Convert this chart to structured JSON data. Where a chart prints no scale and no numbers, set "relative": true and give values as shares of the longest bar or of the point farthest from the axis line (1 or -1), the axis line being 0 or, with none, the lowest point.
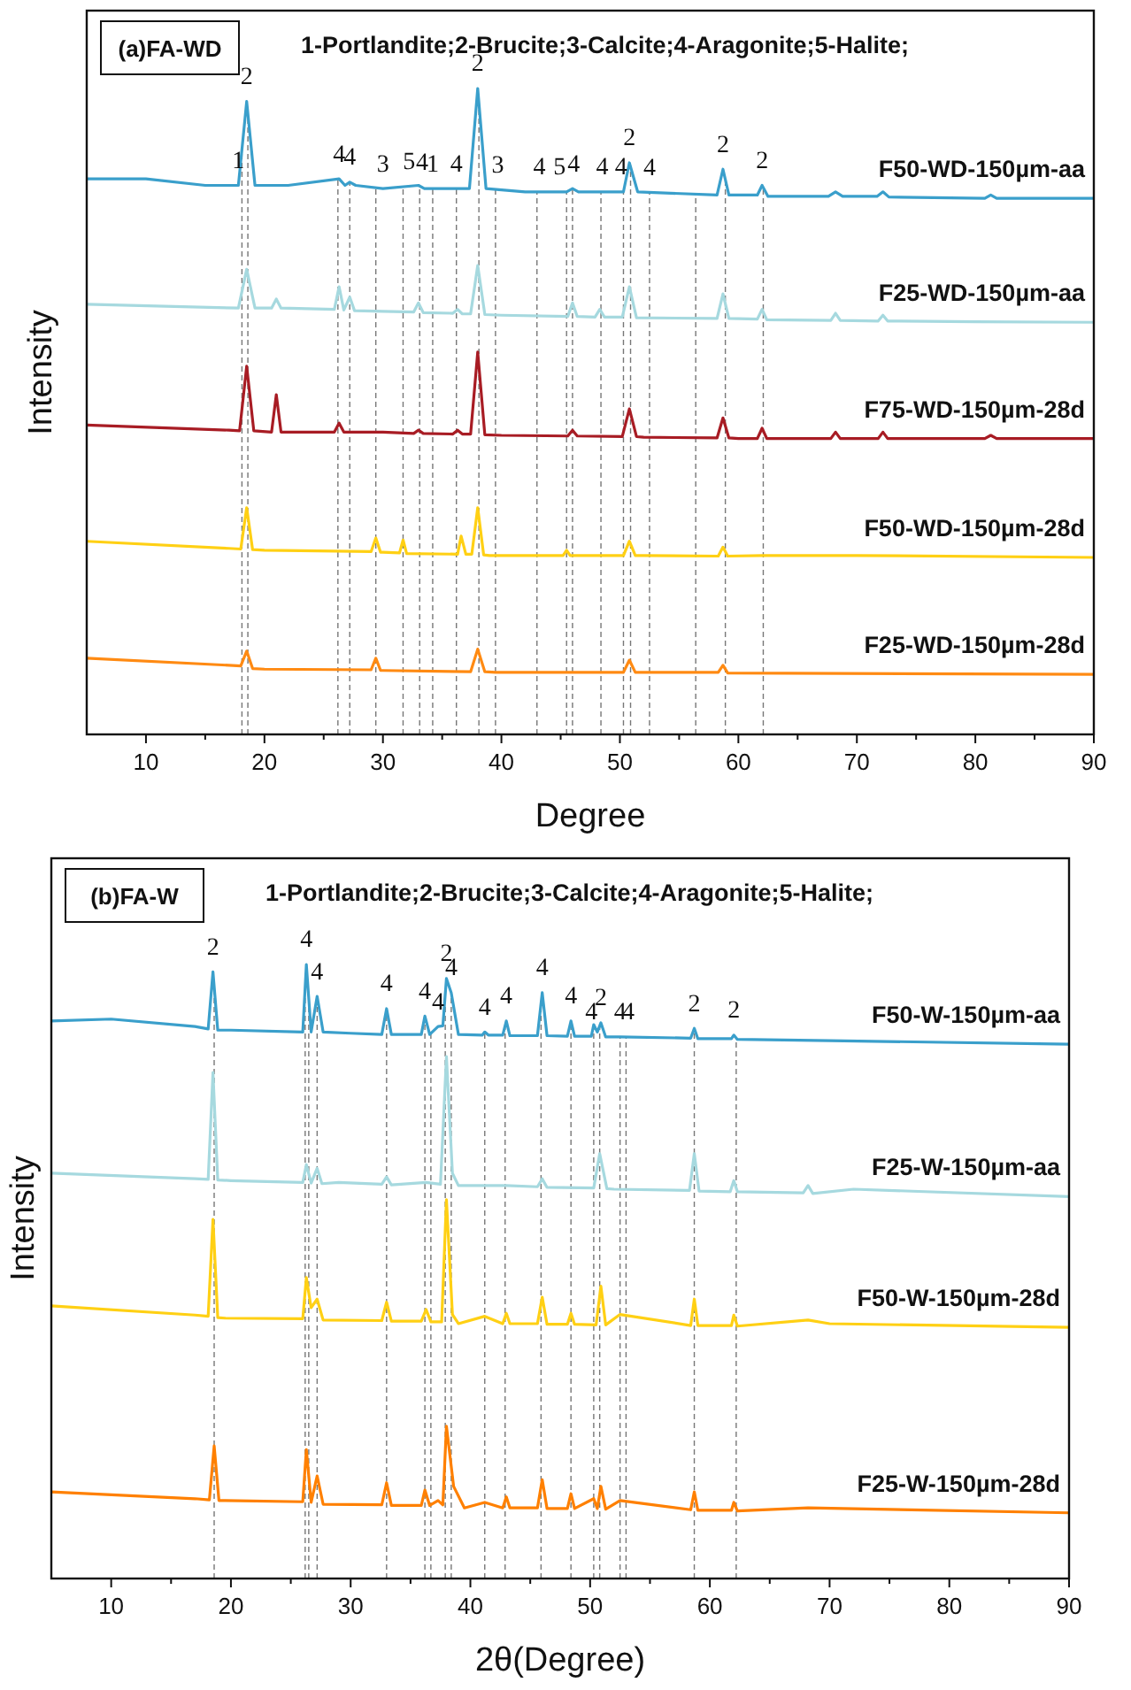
{
  "chart_data": [
    {
      "type": "line",
      "title": "(a)FA-WD",
      "xlabel": "Degree",
      "ylabel": "Intensity",
      "relative": true,
      "xlim": [
        5,
        90
      ],
      "xticks": [
        10,
        {
          "value": 15,
          "label": null
        },
        20,
        {
          "value": 25,
          "label": null
        },
        30,
        {
          "value": 35,
          "label": null
        },
        40,
        {
          "value": 45,
          "label": null
        },
        50,
        {
          "value": 55,
          "label": null
        },
        60,
        {
          "value": 65,
          "label": null
        },
        70,
        {
          "value": 75,
          "label": null
        },
        80,
        {
          "value": 85,
          "label": null
        },
        90
      ],
      "series": [
        {
          "name": "F50-WD-150µm-aa",
          "color": "#3a9fcb",
          "x": [
            5,
            10,
            15,
            17.8,
            18.5,
            19.2,
            22,
            26.3,
            26.8,
            27.2,
            27.7,
            30,
            33,
            33.5,
            37.3,
            38,
            38.7,
            42,
            45.5,
            46,
            46.5,
            48.3,
            50.3,
            50.8,
            51.5,
            58.2,
            58.7,
            59.2,
            61.6,
            62,
            62.5,
            67.6,
            68.2,
            68.8,
            71.7,
            72.2,
            72.7,
            80.8,
            81.3,
            81.8,
            90
          ],
          "values": [
            0.86,
            0.86,
            0.85,
            0.85,
            0.98,
            0.85,
            0.85,
            0.86,
            0.85,
            0.855,
            0.85,
            0.845,
            0.85,
            0.845,
            0.845,
            1.0,
            0.845,
            0.84,
            0.84,
            0.845,
            0.84,
            0.84,
            0.84,
            0.885,
            0.84,
            0.835,
            0.875,
            0.835,
            0.835,
            0.85,
            0.833,
            0.833,
            0.84,
            0.833,
            0.833,
            0.84,
            0.832,
            0.83,
            0.835,
            0.83,
            0.83
          ]
        },
        {
          "name": "F25-WD-150µm-aa",
          "color": "#a6d9df",
          "x": [
            5,
            17.8,
            18.5,
            19.2,
            20.6,
            21,
            21.4,
            25.9,
            26.3,
            26.7,
            27.2,
            27.6,
            30,
            32.6,
            33,
            33.4,
            35.9,
            36.3,
            36.7,
            37.4,
            38,
            38.6,
            40,
            45.6,
            46,
            46.4,
            47.9,
            48.3,
            48.7,
            50.2,
            50.8,
            51.4,
            58.2,
            58.7,
            59.2,
            61.6,
            62,
            62.4,
            67.8,
            68.2,
            68.6,
            71.8,
            72.2,
            72.6,
            80,
            90
          ],
          "values": [
            0.666,
            0.66,
            0.72,
            0.66,
            0.66,
            0.674,
            0.66,
            0.658,
            0.693,
            0.657,
            0.677,
            0.656,
            0.655,
            0.654,
            0.668,
            0.653,
            0.652,
            0.658,
            0.651,
            0.651,
            0.726,
            0.65,
            0.649,
            0.647,
            0.668,
            0.647,
            0.646,
            0.658,
            0.646,
            0.646,
            0.693,
            0.645,
            0.644,
            0.682,
            0.644,
            0.643,
            0.658,
            0.642,
            0.641,
            0.652,
            0.641,
            0.64,
            0.649,
            0.64,
            0.639,
            0.638
          ]
        },
        {
          "name": "F75-WD-150µm-28d",
          "color": "#a81c24",
          "x": [
            5,
            17,
            17.9,
            18.5,
            19.1,
            20.6,
            21,
            21.4,
            25.9,
            26.3,
            26.7,
            30,
            32.6,
            33,
            33.4,
            35.9,
            36.3,
            36.7,
            37.4,
            38,
            38.6,
            40,
            45.6,
            46,
            46.4,
            50.2,
            50.8,
            51.4,
            52,
            58.2,
            58.7,
            59.2,
            60,
            61.6,
            62,
            62.4,
            67.8,
            68.2,
            68.6,
            71.8,
            72.2,
            72.6,
            80.8,
            81.3,
            81.8,
            90
          ],
          "values": [
            0.479,
            0.471,
            0.47,
            0.57,
            0.47,
            0.468,
            0.526,
            0.468,
            0.468,
            0.482,
            0.468,
            0.468,
            0.466,
            0.471,
            0.466,
            0.465,
            0.471,
            0.465,
            0.465,
            0.592,
            0.464,
            0.463,
            0.462,
            0.471,
            0.462,
            0.461,
            0.504,
            0.461,
            0.46,
            0.459,
            0.49,
            0.459,
            0.458,
            0.458,
            0.474,
            0.458,
            0.458,
            0.468,
            0.458,
            0.458,
            0.468,
            0.458,
            0.458,
            0.463,
            0.458,
            0.458
          ]
        },
        {
          "name": "F50-WD-150µm-28d",
          "color": "#ffd014",
          "x": [
            5,
            17,
            18,
            18.5,
            19,
            20,
            29,
            29.4,
            29.8,
            30,
            31.4,
            31.7,
            32,
            36.3,
            36.6,
            37,
            37.5,
            38,
            38.5,
            39,
            45.2,
            45.5,
            45.8,
            50.3,
            50.8,
            51.3,
            52,
            58.3,
            58.7,
            59.1,
            62,
            70,
            90
          ],
          "values": [
            0.299,
            0.288,
            0.287,
            0.351,
            0.286,
            0.285,
            0.283,
            0.304,
            0.282,
            0.282,
            0.281,
            0.301,
            0.28,
            0.279,
            0.307,
            0.279,
            0.279,
            0.351,
            0.278,
            0.277,
            0.277,
            0.285,
            0.277,
            0.277,
            0.299,
            0.277,
            0.277,
            0.276,
            0.29,
            0.276,
            0.277,
            0.277,
            0.274
          ]
        },
        {
          "name": "F25-WD-150µm-28d",
          "color": "#ff8a12",
          "x": [
            5,
            17,
            18,
            18.5,
            19,
            20,
            29,
            29.4,
            29.8,
            30,
            37.4,
            38,
            38.6,
            39.5,
            50.3,
            50.8,
            51.3,
            52,
            58.3,
            58.7,
            59.1,
            90
          ],
          "values": [
            0.118,
            0.107,
            0.106,
            0.129,
            0.102,
            0.101,
            0.1,
            0.118,
            0.099,
            0.099,
            0.097,
            0.132,
            0.097,
            0.096,
            0.096,
            0.115,
            0.096,
            0.096,
            0.096,
            0.107,
            0.095,
            0.093
          ]
        }
      ],
      "ref_lines": [
        {
          "axis": "x",
          "value": 18.1
        },
        {
          "axis": "x",
          "value": 18.6
        },
        {
          "axis": "x",
          "value": 26.2
        },
        {
          "axis": "x",
          "value": 27.2
        },
        {
          "axis": "x",
          "value": 29.4
        },
        {
          "axis": "x",
          "value": 31.7
        },
        {
          "axis": "x",
          "value": 33.1
        },
        {
          "axis": "x",
          "value": 34.2
        },
        {
          "axis": "x",
          "value": 36.2
        },
        {
          "axis": "x",
          "value": 38.1
        },
        {
          "axis": "x",
          "value": 39.5
        },
        {
          "axis": "x",
          "value": 43
        },
        {
          "axis": "x",
          "value": 45.5
        },
        {
          "axis": "x",
          "value": 46
        },
        {
          "axis": "x",
          "value": 48.4
        },
        {
          "axis": "x",
          "value": 50.3
        },
        {
          "axis": "x",
          "value": 50.9
        },
        {
          "axis": "x",
          "value": 52.5
        },
        {
          "axis": "x",
          "value": 56.4
        },
        {
          "axis": "x",
          "value": 58.9
        },
        {
          "axis": "x",
          "value": 62.1
        }
      ],
      "annotations": [
        "1-Portlandite;2-Brucite;3-Calcite;4-Aragonite;5-Halite;",
        {
          "text": "1",
          "x": 17.8,
          "y": 0.85
        },
        {
          "text": "2",
          "x": 18.5,
          "y": 0.98
        },
        {
          "text": "4",
          "x": 26.3,
          "y": 0.86
        },
        {
          "text": "4",
          "x": 27.2,
          "y": 0.855
        },
        {
          "text": "3",
          "x": 30,
          "y": 0.845
        },
        {
          "text": "5",
          "x": 32.2,
          "y": 0.848
        },
        {
          "text": "4",
          "x": 33.3,
          "y": 0.847
        },
        {
          "text": "1",
          "x": 34.2,
          "y": 0.845
        },
        {
          "text": "4",
          "x": 36.2,
          "y": 0.845
        },
        {
          "text": "2",
          "x": 38,
          "y": 1.0
        },
        {
          "text": "3",
          "x": 39.7,
          "y": 0.843
        },
        {
          "text": "4",
          "x": 43.2,
          "y": 0.84
        },
        {
          "text": "5",
          "x": 44.9,
          "y": 0.84
        },
        {
          "text": "4",
          "x": 46.1,
          "y": 0.844
        },
        {
          "text": "4",
          "x": 48.5,
          "y": 0.84
        },
        {
          "text": "4",
          "x": 50.1,
          "y": 0.84
        },
        {
          "text": "2",
          "x": 50.8,
          "y": 0.885
        },
        {
          "text": "4",
          "x": 52.5,
          "y": 0.839
        },
        {
          "text": "2",
          "x": 58.7,
          "y": 0.875
        },
        {
          "text": "2",
          "x": 62,
          "y": 0.85
        }
      ]
    },
    {
      "type": "line",
      "title": "(b)FA-W",
      "xlabel": "2θ(Degree)",
      "ylabel": "Intensity",
      "relative": true,
      "xlim": [
        5,
        90
      ],
      "xticks": [
        10,
        {
          "value": 15,
          "label": null
        },
        20,
        {
          "value": 25,
          "label": null
        },
        30,
        {
          "value": 35,
          "label": null
        },
        40,
        {
          "value": 45,
          "label": null
        },
        50,
        {
          "value": 55,
          "label": null
        },
        60,
        {
          "value": 65,
          "label": null
        },
        70,
        {
          "value": 75,
          "label": null
        },
        80,
        {
          "value": 85,
          "label": null
        },
        90
      ],
      "series": [
        {
          "name": "F50-W-150µm-aa",
          "color": "#3a9fcb",
          "x": [
            5,
            10,
            17,
            18.1,
            18.5,
            18.9,
            20,
            26,
            26.3,
            26.7,
            27.2,
            27.7,
            30,
            32.6,
            33,
            33.4,
            35.9,
            36.2,
            36.6,
            37.3,
            37.7,
            38,
            38.4,
            39,
            41,
            41.2,
            41.5,
            42.7,
            43,
            43.3,
            45.6,
            46,
            46.4,
            48.1,
            48.4,
            48.7,
            50.1,
            50.3,
            50.6,
            50.9,
            51.3,
            52.5,
            58.4,
            58.7,
            59,
            61.8,
            62,
            62.3,
            70,
            90
          ],
          "values": [
            0.908,
            0.911,
            0.899,
            0.895,
            0.988,
            0.893,
            0.893,
            0.89,
            1.0,
            0.89,
            0.948,
            0.89,
            0.888,
            0.886,
            0.928,
            0.886,
            0.886,
            0.916,
            0.886,
            0.899,
            0.9,
            0.977,
            0.954,
            0.886,
            0.885,
            0.89,
            0.885,
            0.885,
            0.908,
            0.884,
            0.884,
            0.954,
            0.884,
            0.883,
            0.908,
            0.883,
            0.883,
            0.902,
            0.89,
            0.905,
            0.882,
            0.882,
            0.88,
            0.896,
            0.879,
            0.879,
            0.885,
            0.878,
            0.876,
            0.87
          ]
        },
        {
          "name": "F25-W-150µm-aa",
          "color": "#a6d9df",
          "x": [
            5,
            17,
            18.1,
            18.5,
            18.9,
            20,
            26,
            26.3,
            26.7,
            27.2,
            27.6,
            29,
            32.6,
            33,
            33.4,
            36.3,
            37.5,
            38,
            38.5,
            39,
            43,
            45.6,
            46,
            46.4,
            50.3,
            50.8,
            51.4,
            52,
            58.3,
            58.7,
            59.1,
            61.7,
            62,
            62.3,
            67.8,
            68.2,
            68.6,
            72,
            90
          ],
          "values": [
            0.66,
            0.651,
            0.65,
            0.824,
            0.649,
            0.648,
            0.645,
            0.674,
            0.644,
            0.668,
            0.643,
            0.645,
            0.642,
            0.654,
            0.641,
            0.645,
            0.642,
            0.85,
            0.66,
            0.64,
            0.64,
            0.638,
            0.651,
            0.637,
            0.636,
            0.692,
            0.635,
            0.634,
            0.632,
            0.692,
            0.631,
            0.63,
            0.648,
            0.63,
            0.628,
            0.64,
            0.627,
            0.634,
            0.622
          ]
        },
        {
          "name": "F50-W-150µm-28d",
          "color": "#ffd014",
          "x": [
            5,
            17,
            18.1,
            18.5,
            18.9,
            19.5,
            26,
            26.3,
            26.7,
            27.2,
            27.7,
            32.6,
            33,
            33.4,
            35.9,
            36.3,
            36.7,
            37.6,
            38,
            38.5,
            39,
            41.2,
            42.7,
            43,
            43.3,
            45.6,
            46,
            46.4,
            48.1,
            48.4,
            48.7,
            50.5,
            50.9,
            51.3,
            52.5,
            58.4,
            58.7,
            59,
            61.8,
            62,
            62.3,
            68.2,
            70,
            90
          ],
          "values": [
            0.444,
            0.429,
            0.427,
            0.585,
            0.425,
            0.424,
            0.423,
            0.49,
            0.441,
            0.455,
            0.421,
            0.42,
            0.45,
            0.419,
            0.419,
            0.438,
            0.418,
            0.418,
            0.617,
            0.43,
            0.415,
            0.427,
            0.415,
            0.432,
            0.415,
            0.415,
            0.458,
            0.414,
            0.414,
            0.432,
            0.414,
            0.413,
            0.476,
            0.413,
            0.43,
            0.412,
            0.455,
            0.412,
            0.412,
            0.429,
            0.411,
            0.421,
            0.415,
            0.409
          ]
        },
        {
          "name": "F25-W-150µm-28d",
          "color": "#ff8000",
          "x": [
            5,
            17,
            18.2,
            18.6,
            19,
            19.5,
            26,
            26.3,
            26.7,
            27.2,
            27.7,
            32.6,
            33,
            33.4,
            35.9,
            36.2,
            36.6,
            37.3,
            37.7,
            38,
            38.6,
            39.5,
            41.2,
            42.7,
            43,
            43.3,
            45.6,
            46,
            46.4,
            48.1,
            48.4,
            48.7,
            50.3,
            50.6,
            50.9,
            51.3,
            52.5,
            58.4,
            58.7,
            59,
            61.8,
            62,
            62.3,
            68.2,
            90
          ],
          "values": [
            0.141,
            0.13,
            0.128,
            0.216,
            0.127,
            0.127,
            0.125,
            0.21,
            0.124,
            0.167,
            0.121,
            0.12,
            0.156,
            0.119,
            0.119,
            0.144,
            0.119,
            0.127,
            0.12,
            0.248,
            0.15,
            0.115,
            0.124,
            0.115,
            0.133,
            0.115,
            0.115,
            0.161,
            0.114,
            0.114,
            0.138,
            0.114,
            0.13,
            0.114,
            0.15,
            0.113,
            0.127,
            0.112,
            0.141,
            0.111,
            0.111,
            0.124,
            0.11,
            0.115,
            0.107
          ]
        }
      ],
      "ref_lines": [
        {
          "axis": "x",
          "value": 18.6
        },
        {
          "axis": "x",
          "value": 26.2
        },
        {
          "axis": "x",
          "value": 26.5
        },
        {
          "axis": "x",
          "value": 27.2
        },
        {
          "axis": "x",
          "value": 33
        },
        {
          "axis": "x",
          "value": 36.2
        },
        {
          "axis": "x",
          "value": 36.7
        },
        {
          "axis": "x",
          "value": 37.9
        },
        {
          "axis": "x",
          "value": 38.4
        },
        {
          "axis": "x",
          "value": 41.2
        },
        {
          "axis": "x",
          "value": 42.9
        },
        {
          "axis": "x",
          "value": 45.9
        },
        {
          "axis": "x",
          "value": 48.4
        },
        {
          "axis": "x",
          "value": 50.3
        },
        {
          "axis": "x",
          "value": 50.8
        },
        {
          "axis": "x",
          "value": 52.5
        },
        {
          "axis": "x",
          "value": 53
        },
        {
          "axis": "x",
          "value": 58.7
        },
        {
          "axis": "x",
          "value": 62.2
        }
      ],
      "annotations": [
        "1-Portlandite;2-Brucite;3-Calcite;4-Aragonite;5-Halite;",
        {
          "text": "2",
          "x": 18.5,
          "y": 0.988
        },
        {
          "text": "4",
          "x": 26.3,
          "y": 1.0
        },
        {
          "text": "4",
          "x": 27.2,
          "y": 0.948
        },
        {
          "text": "4",
          "x": 33,
          "y": 0.928
        },
        {
          "text": "4",
          "x": 36.2,
          "y": 0.916
        },
        {
          "text": "4",
          "x": 37.3,
          "y": 0.899
        },
        {
          "text": "2",
          "x": 38,
          "y": 0.977
        },
        {
          "text": "4",
          "x": 38.4,
          "y": 0.954
        },
        {
          "text": "4",
          "x": 41.2,
          "y": 0.89
        },
        {
          "text": "4",
          "x": 43,
          "y": 0.908
        },
        {
          "text": "4",
          "x": 46,
          "y": 0.954
        },
        {
          "text": "4",
          "x": 48.4,
          "y": 0.908
        },
        {
          "text": "4",
          "x": 50.1,
          "y": 0.883
        },
        {
          "text": "2",
          "x": 50.9,
          "y": 0.905
        },
        {
          "text": "4",
          "x": 52.5,
          "y": 0.882
        },
        {
          "text": "4",
          "x": 53.2,
          "y": 0.882
        },
        {
          "text": "2",
          "x": 58.7,
          "y": 0.896
        },
        {
          "text": "2",
          "x": 62,
          "y": 0.885
        }
      ]
    }
  ]
}
